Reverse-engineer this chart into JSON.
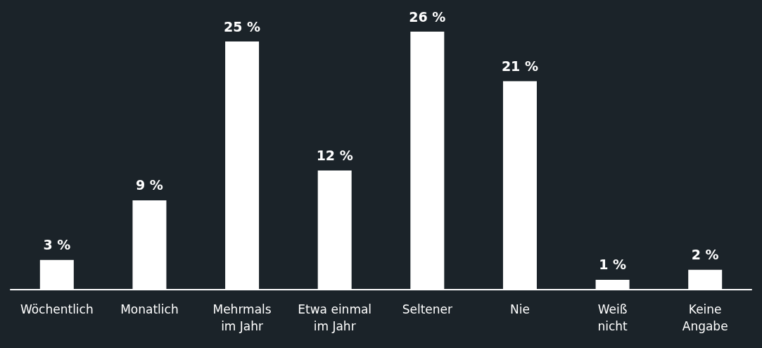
{
  "chart_data": {
    "type": "bar",
    "categories": [
      "Wöchentlich",
      "Monatlich",
      "Mehrmals\nim Jahr",
      "Etwa einmal\nim Jahr",
      "Seltener",
      "Nie",
      "Weiß\nnicht",
      "Keine\nAngabe"
    ],
    "values": [
      3,
      9,
      25,
      12,
      26,
      21,
      1,
      2
    ],
    "value_labels": [
      "3 %",
      "9 %",
      "25 %",
      "12 %",
      "26 %",
      "21 %",
      "1 %",
      "2 %"
    ],
    "color": "#ffffff",
    "grid": false
  }
}
